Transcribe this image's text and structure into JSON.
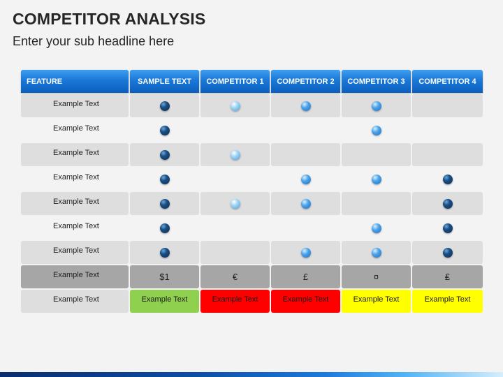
{
  "title": "COMPETITOR ANALYSIS",
  "subtitle": "Enter your sub headline here",
  "table": {
    "headers": [
      "FEATURE",
      "SAMPLE TEXT",
      "COMPETITOR 1",
      "COMPETITOR 2",
      "COMPETITOR 3",
      "COMPETITOR 4"
    ],
    "rows": [
      {
        "label": "Example Text",
        "shaded": true,
        "marks": [
          "dark",
          "light",
          "mid",
          "mid",
          ""
        ]
      },
      {
        "label": "Example Text",
        "shaded": false,
        "marks": [
          "dark",
          "",
          "",
          "mid",
          ""
        ]
      },
      {
        "label": "Example Text",
        "shaded": true,
        "marks": [
          "dark",
          "light",
          "",
          "",
          ""
        ]
      },
      {
        "label": "Example Text",
        "shaded": false,
        "marks": [
          "dark",
          "",
          "mid",
          "mid",
          "dark"
        ]
      },
      {
        "label": "Example Text",
        "shaded": true,
        "marks": [
          "dark",
          "light",
          "mid",
          "",
          "dark"
        ]
      },
      {
        "label": "Example Text",
        "shaded": false,
        "marks": [
          "dark",
          "",
          "",
          "mid",
          "dark"
        ]
      },
      {
        "label": "Example Text",
        "shaded": true,
        "marks": [
          "dark",
          "",
          "mid",
          "mid",
          "dark"
        ]
      }
    ],
    "price_row": {
      "label": "Example Text",
      "values": [
        "$1",
        "€",
        "£",
        "¤",
        "₤"
      ]
    },
    "status_row": {
      "label": "Example Text",
      "cells": [
        {
          "text": "Example Text",
          "color": "#8fd14f"
        },
        {
          "text": "Example Text",
          "color": "#ff0000"
        },
        {
          "text": "Example Text",
          "color": "#ff0000"
        },
        {
          "text": "Example Text",
          "color": "#ffff00"
        },
        {
          "text": "Example Text",
          "color": "#ffff00"
        }
      ]
    }
  },
  "colors": {
    "header_blue": "#1a78d8",
    "dark_dot": "#0c2d52",
    "mid_dot": "#4aa3ea",
    "light_dot": "#9ed4f5"
  }
}
